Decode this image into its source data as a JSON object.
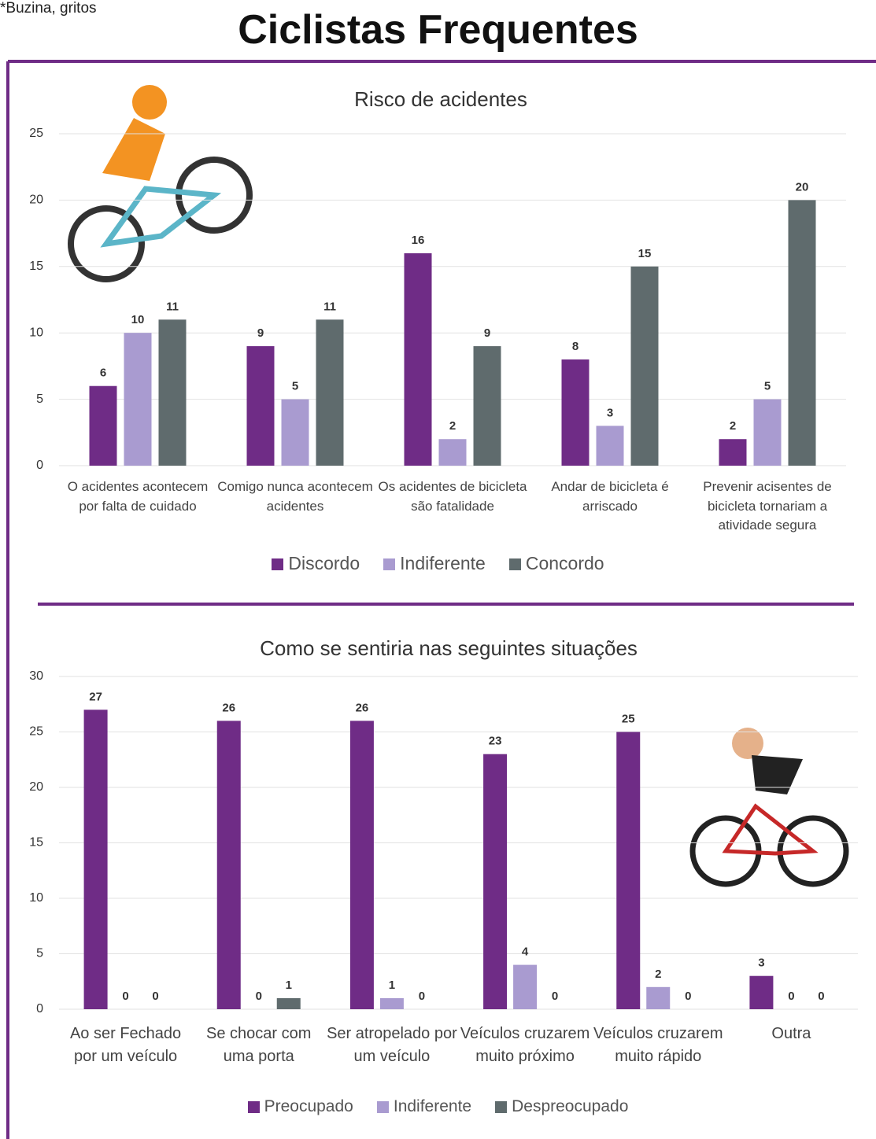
{
  "title": "Ciclistas Frequentes",
  "chart_data": [
    {
      "type": "bar",
      "title": "Risco de acidentes",
      "categories": [
        "O acidentes acontecem por falta de cuidado",
        "Comigo nunca acontecem acidentes",
        "Os acidentes de bicicleta são fatalidade",
        "Andar de bicicleta é arriscado",
        "Prevenir acisentes de bicicleta tornariam a atividade segura"
      ],
      "series": [
        {
          "name": "Discordo",
          "color": "#6f2c86",
          "values": [
            6,
            9,
            16,
            8,
            2
          ]
        },
        {
          "name": "Indiferente",
          "color": "#a99bd0",
          "values": [
            10,
            5,
            2,
            3,
            5
          ]
        },
        {
          "name": "Concordo",
          "color": "#5f6b6d",
          "values": [
            11,
            11,
            9,
            15,
            20
          ]
        }
      ],
      "ylim": [
        0,
        25
      ],
      "yticks": [
        0,
        5,
        10,
        15,
        20,
        25
      ],
      "grid": true
    },
    {
      "type": "bar",
      "title": "Como se sentiria nas seguintes situações",
      "categories": [
        "Ao ser Fechado por um veículo",
        "Se chocar com uma porta",
        "Ser atropelado por um veículo",
        "Veículos cruzarem muito próximo",
        "Veículos cruzarem muito rápido",
        "Outra"
      ],
      "series": [
        {
          "name": "Preocupado",
          "color": "#6f2c86",
          "values": [
            27,
            26,
            26,
            23,
            25,
            3
          ]
        },
        {
          "name": "Indiferente",
          "color": "#a99bd0",
          "values": [
            0,
            0,
            1,
            4,
            2,
            0
          ]
        },
        {
          "name": "Despreocupado",
          "color": "#5f6b6d",
          "values": [
            0,
            1,
            0,
            0,
            0,
            0
          ]
        }
      ],
      "annotation": "*Buzina, gritos",
      "ylim": [
        0,
        30
      ],
      "yticks": [
        0,
        5,
        10,
        15,
        20,
        25,
        30
      ],
      "grid": true
    }
  ]
}
